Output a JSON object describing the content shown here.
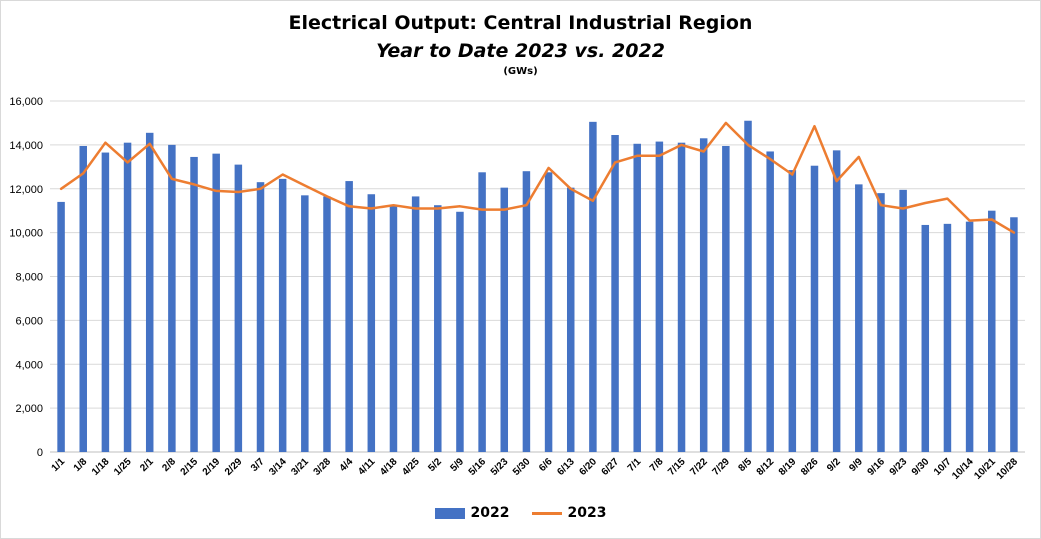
{
  "chart_data": {
    "type": "bar+line",
    "title": "Electrical Output:  Central Industrial Region",
    "subtitle": "Year to Date 2023 vs. 2022",
    "unit": "(GWs)",
    "ylim": [
      0,
      16000
    ],
    "yticks": [
      0,
      2000,
      4000,
      6000,
      8000,
      10000,
      12000,
      14000,
      16000
    ],
    "ytick_labels": [
      "0",
      "2,000",
      "4,000",
      "6,000",
      "8,000",
      "10,000",
      "12,000",
      "14,000",
      "16,000"
    ],
    "grid": true,
    "legend_position": "bottom",
    "categories": [
      "1/1",
      "1/8",
      "1/18",
      "1/25",
      "2/1",
      "2/8",
      "2/15",
      "2/19",
      "2/29",
      "3/7",
      "3/14",
      "3/21",
      "3/28",
      "4/4",
      "4/11",
      "4/18",
      "4/25",
      "5/2",
      "5/9",
      "5/16",
      "5/23",
      "5/30",
      "6/6",
      "6/13",
      "6/20",
      "6/27",
      "7/1",
      "7/8",
      "7/15",
      "7/22",
      "7/29",
      "8/5",
      "8/12",
      "8/19",
      "8/26",
      "9/2",
      "9/9",
      "9/16",
      "9/23",
      "9/30",
      "10/7",
      "10/14",
      "10/21",
      "10/28"
    ],
    "series": [
      {
        "name": "2022",
        "kind": "bar",
        "color": "#4472C4",
        "values": [
          11400,
          13950,
          13650,
          14100,
          14550,
          14000,
          13450,
          13600,
          13100,
          12300,
          12450,
          11700,
          11650,
          12350,
          11750,
          11200,
          11650,
          11250,
          10950,
          12750,
          12050,
          12800,
          12750,
          12050,
          15050,
          14450,
          14050,
          14150,
          14100,
          14300,
          13950,
          15100,
          13700,
          12850,
          13050,
          13750,
          12200,
          11800,
          11950,
          10350,
          10400,
          10500,
          11000,
          10700
        ]
      },
      {
        "name": "2023",
        "kind": "line",
        "color": "#ED7D31",
        "values": [
          12000,
          12700,
          14100,
          13200,
          14050,
          12450,
          12200,
          11900,
          11850,
          12000,
          12650,
          12150,
          11650,
          11200,
          11100,
          11250,
          11100,
          11100,
          11200,
          11050,
          11050,
          11250,
          12950,
          12000,
          11450,
          13200,
          13500,
          13500,
          14000,
          13700,
          15000,
          14000,
          13350,
          12650,
          14850,
          12350,
          13450,
          11250,
          11100,
          11350,
          11550,
          10550,
          10600,
          10000
        ]
      }
    ]
  }
}
